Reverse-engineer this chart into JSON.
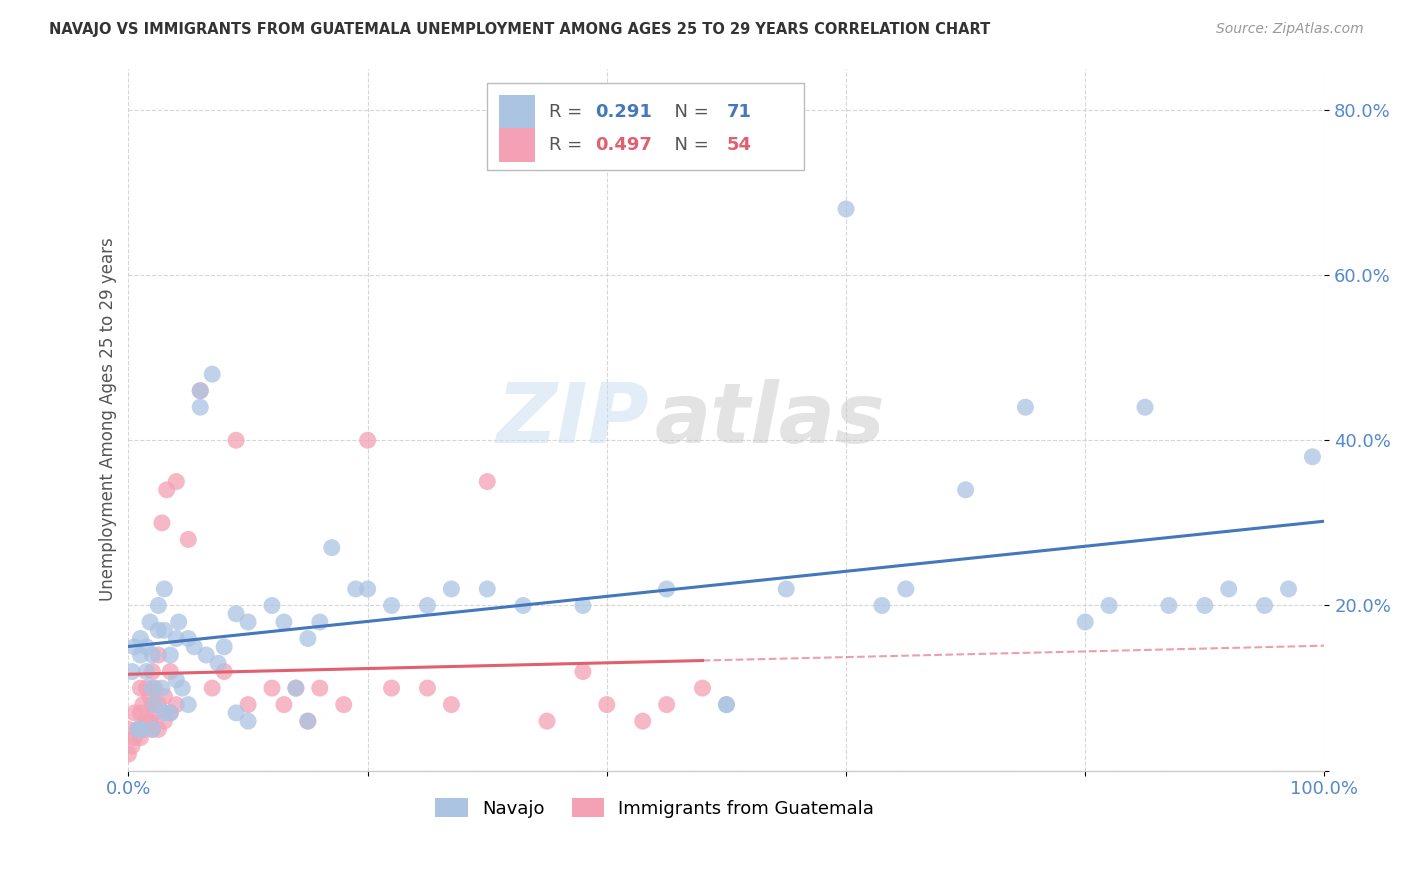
{
  "title": "NAVAJO VS IMMIGRANTS FROM GUATEMALA UNEMPLOYMENT AMONG AGES 25 TO 29 YEARS CORRELATION CHART",
  "source": "Source: ZipAtlas.com",
  "ylabel": "Unemployment Among Ages 25 to 29 years",
  "xlim": [
    0,
    1.0
  ],
  "ylim": [
    0,
    0.85
  ],
  "legend_R1": "0.291",
  "legend_N1": "71",
  "legend_R2": "0.497",
  "legend_N2": "54",
  "navajo_color": "#aac4e2",
  "guatemala_color": "#f4a0b5",
  "trendline_navajo_color": "#4477bb",
  "trendline_guatemala_color": "#e06070",
  "watermark_zip": "ZIP",
  "watermark_atlas": "atlas",
  "background_color": "#ffffff",
  "grid_color": "#cccccc",
  "navajo_x": [
    0.003,
    0.005,
    0.008,
    0.01,
    0.01,
    0.01,
    0.015,
    0.015,
    0.018,
    0.02,
    0.02,
    0.02,
    0.022,
    0.025,
    0.025,
    0.028,
    0.03,
    0.03,
    0.03,
    0.035,
    0.035,
    0.04,
    0.04,
    0.042,
    0.045,
    0.05,
    0.05,
    0.055,
    0.06,
    0.06,
    0.065,
    0.07,
    0.075,
    0.08,
    0.09,
    0.09,
    0.1,
    0.1,
    0.12,
    0.13,
    0.14,
    0.15,
    0.15,
    0.16,
    0.17,
    0.19,
    0.2,
    0.22,
    0.25,
    0.27,
    0.3,
    0.33,
    0.38,
    0.45,
    0.5,
    0.5,
    0.55,
    0.6,
    0.63,
    0.65,
    0.7,
    0.75,
    0.8,
    0.82,
    0.85,
    0.87,
    0.9,
    0.92,
    0.95,
    0.97,
    0.99
  ],
  "navajo_y": [
    0.12,
    0.15,
    0.05,
    0.14,
    0.16,
    0.05,
    0.15,
    0.12,
    0.18,
    0.14,
    0.1,
    0.05,
    0.08,
    0.17,
    0.2,
    0.1,
    0.22,
    0.17,
    0.07,
    0.14,
    0.07,
    0.16,
    0.11,
    0.18,
    0.1,
    0.16,
    0.08,
    0.15,
    0.46,
    0.44,
    0.14,
    0.48,
    0.13,
    0.15,
    0.19,
    0.07,
    0.18,
    0.06,
    0.2,
    0.18,
    0.1,
    0.16,
    0.06,
    0.18,
    0.27,
    0.22,
    0.22,
    0.2,
    0.2,
    0.22,
    0.22,
    0.2,
    0.2,
    0.22,
    0.08,
    0.08,
    0.22,
    0.68,
    0.2,
    0.22,
    0.34,
    0.44,
    0.18,
    0.2,
    0.44,
    0.2,
    0.2,
    0.22,
    0.2,
    0.22,
    0.38
  ],
  "guatemala_x": [
    0.0,
    0.0,
    0.003,
    0.005,
    0.005,
    0.008,
    0.01,
    0.01,
    0.01,
    0.012,
    0.012,
    0.015,
    0.015,
    0.018,
    0.018,
    0.02,
    0.02,
    0.02,
    0.022,
    0.022,
    0.025,
    0.025,
    0.025,
    0.028,
    0.03,
    0.03,
    0.032,
    0.035,
    0.035,
    0.04,
    0.04,
    0.05,
    0.06,
    0.07,
    0.08,
    0.09,
    0.1,
    0.12,
    0.13,
    0.14,
    0.15,
    0.16,
    0.18,
    0.2,
    0.22,
    0.25,
    0.27,
    0.3,
    0.35,
    0.38,
    0.4,
    0.43,
    0.45,
    0.48
  ],
  "guatemala_y": [
    0.02,
    0.05,
    0.03,
    0.04,
    0.07,
    0.05,
    0.04,
    0.07,
    0.1,
    0.05,
    0.08,
    0.06,
    0.1,
    0.06,
    0.09,
    0.05,
    0.08,
    0.12,
    0.07,
    0.1,
    0.05,
    0.08,
    0.14,
    0.3,
    0.06,
    0.09,
    0.34,
    0.07,
    0.12,
    0.08,
    0.35,
    0.28,
    0.46,
    0.1,
    0.12,
    0.4,
    0.08,
    0.1,
    0.08,
    0.1,
    0.06,
    0.1,
    0.08,
    0.4,
    0.1,
    0.1,
    0.08,
    0.35,
    0.06,
    0.12,
    0.08,
    0.06,
    0.08,
    0.1
  ]
}
